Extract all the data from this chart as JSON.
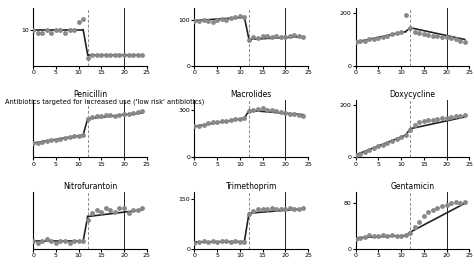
{
  "subplots": [
    {
      "title": "",
      "row": 0,
      "col": 0,
      "scatter_x": [
        0,
        1,
        2,
        3,
        4,
        5,
        6,
        7,
        8,
        9,
        10,
        11,
        12,
        13,
        14,
        15,
        16,
        17,
        18,
        19,
        20,
        21,
        22,
        23,
        24
      ],
      "scatter_y": [
        10,
        9,
        9,
        10,
        9,
        10,
        10,
        9,
        10,
        10,
        12,
        13,
        2,
        3,
        3,
        3,
        3,
        3,
        3,
        3,
        3,
        3,
        3,
        3,
        3
      ],
      "line_x": [
        0,
        11,
        12,
        24
      ],
      "line_y": [
        10,
        10,
        3,
        3
      ],
      "vline1": 12,
      "vline2": 20,
      "ylim": [
        0,
        16
      ],
      "yticks": [
        10
      ],
      "ylabel": ""
    },
    {
      "title": "",
      "row": 0,
      "col": 1,
      "scatter_x": [
        0,
        1,
        2,
        3,
        4,
        5,
        6,
        7,
        8,
        9,
        10,
        11,
        12,
        13,
        14,
        15,
        16,
        17,
        18,
        19,
        20,
        21,
        22,
        23,
        24
      ],
      "scatter_y": [
        97,
        98,
        100,
        98,
        95,
        100,
        101,
        100,
        103,
        105,
        107,
        106,
        55,
        62,
        60,
        64,
        64,
        62,
        64,
        62,
        62,
        64,
        66,
        65,
        63
      ],
      "line_x": [
        0,
        11,
        12,
        24
      ],
      "line_y": [
        98,
        105,
        57,
        63
      ],
      "vline1": 12,
      "vline2": 20,
      "ylim": [
        0,
        125
      ],
      "yticks": [
        0,
        100
      ],
      "ylabel": ""
    },
    {
      "title": "",
      "row": 0,
      "col": 2,
      "scatter_x": [
        0,
        1,
        2,
        3,
        4,
        5,
        6,
        7,
        8,
        9,
        10,
        11,
        12,
        13,
        14,
        15,
        16,
        17,
        18,
        19,
        20,
        21,
        22,
        23,
        24
      ],
      "scatter_y": [
        90,
        95,
        95,
        100,
        100,
        105,
        110,
        115,
        120,
        125,
        130,
        195,
        145,
        130,
        125,
        120,
        118,
        115,
        112,
        110,
        108,
        105,
        100,
        95,
        90
      ],
      "line_x": [
        0,
        11,
        12,
        24
      ],
      "line_y": [
        90,
        130,
        145,
        100
      ],
      "vline1": 12,
      "vline2": 20,
      "ylim": [
        0,
        220
      ],
      "yticks": [
        0,
        200
      ],
      "ylabel": ""
    },
    {
      "title": "Penicillin",
      "row": 1,
      "col": 0,
      "scatter_x": [
        0,
        1,
        2,
        3,
        4,
        5,
        6,
        7,
        8,
        9,
        10,
        11,
        12,
        13,
        14,
        15,
        16,
        17,
        18,
        19,
        20,
        21,
        22,
        23,
        24
      ],
      "scatter_y": [
        50,
        52,
        55,
        58,
        60,
        62,
        65,
        68,
        70,
        73,
        75,
        78,
        135,
        140,
        143,
        145,
        147,
        148,
        145,
        148,
        150,
        152,
        155,
        157,
        160
      ],
      "line_x": [
        0,
        11,
        12,
        24
      ],
      "line_y": [
        50,
        78,
        135,
        155
      ],
      "vline1": 12,
      "vline2": 20,
      "ylim": [
        0,
        200
      ],
      "yticks": [],
      "ylabel": ""
    },
    {
      "title": "Macrolides",
      "row": 1,
      "col": 1,
      "scatter_x": [
        0,
        1,
        2,
        3,
        4,
        5,
        6,
        7,
        8,
        9,
        10,
        11,
        12,
        13,
        14,
        15,
        16,
        17,
        18,
        19,
        20,
        21,
        22,
        23,
        24
      ],
      "scatter_y": [
        195,
        200,
        205,
        215,
        220,
        225,
        228,
        230,
        235,
        240,
        242,
        245,
        290,
        300,
        305,
        310,
        300,
        295,
        290,
        285,
        278,
        275,
        270,
        265,
        262
      ],
      "line_x": [
        0,
        11,
        12,
        24
      ],
      "line_y": [
        195,
        245,
        295,
        268
      ],
      "vline1": 12,
      "vline2": 20,
      "ylim": [
        0,
        360
      ],
      "yticks": [
        0,
        300
      ],
      "ylabel": ""
    },
    {
      "title": "Doxycycline",
      "row": 1,
      "col": 2,
      "scatter_x": [
        0,
        1,
        2,
        3,
        4,
        5,
        6,
        7,
        8,
        9,
        10,
        11,
        12,
        13,
        14,
        15,
        16,
        17,
        18,
        19,
        20,
        21,
        22,
        23,
        24
      ],
      "scatter_y": [
        10,
        15,
        20,
        28,
        35,
        42,
        48,
        55,
        62,
        70,
        78,
        85,
        105,
        125,
        135,
        140,
        142,
        145,
        148,
        150,
        153,
        155,
        158,
        160,
        162
      ],
      "line_x": [
        0,
        11,
        12,
        24
      ],
      "line_y": [
        10,
        85,
        110,
        155
      ],
      "vline1": 12,
      "vline2": 20,
      "ylim": [
        0,
        220
      ],
      "yticks": [
        0,
        200
      ],
      "ylabel": ""
    },
    {
      "title": "Nitrofurantoin",
      "row": 2,
      "col": 0,
      "scatter_x": [
        0,
        1,
        2,
        3,
        4,
        5,
        6,
        7,
        8,
        9,
        10,
        11,
        12,
        13,
        14,
        15,
        16,
        17,
        18,
        19,
        20,
        21,
        22,
        23,
        24
      ],
      "scatter_y": [
        5,
        4,
        5,
        6,
        5,
        4,
        5,
        5,
        4,
        5,
        5,
        5,
        18,
        22,
        24,
        23,
        25,
        24,
        23,
        25,
        25,
        22,
        24,
        24,
        25
      ],
      "line_x": [
        0,
        11,
        12,
        24
      ],
      "line_y": [
        5,
        5,
        20,
        24
      ],
      "vline1": 12,
      "vline2": 20,
      "ylim": [
        0,
        35
      ],
      "yticks": [],
      "ylabel": ""
    },
    {
      "title": "Trimethoprim",
      "row": 2,
      "col": 1,
      "scatter_x": [
        0,
        1,
        2,
        3,
        4,
        5,
        6,
        7,
        8,
        9,
        10,
        11,
        12,
        13,
        14,
        15,
        16,
        17,
        18,
        19,
        20,
        21,
        22,
        23,
        24
      ],
      "scatter_y": [
        20,
        22,
        24,
        23,
        25,
        22,
        24,
        25,
        23,
        24,
        23,
        22,
        105,
        112,
        118,
        120,
        119,
        122,
        120,
        118,
        120,
        122,
        120,
        118,
        122
      ],
      "line_x": [
        0,
        11,
        12,
        24
      ],
      "line_y": [
        22,
        23,
        107,
        120
      ],
      "vline1": 12,
      "vline2": 20,
      "ylim": [
        0,
        170
      ],
      "yticks": [
        0,
        150
      ],
      "ylabel": ""
    },
    {
      "title": "Gentamicin",
      "row": 2,
      "col": 2,
      "scatter_x": [
        0,
        1,
        2,
        3,
        4,
        5,
        6,
        7,
        8,
        9,
        10,
        11,
        12,
        13,
        14,
        15,
        16,
        17,
        18,
        19,
        20,
        21,
        22,
        23,
        24
      ],
      "scatter_y": [
        18,
        20,
        22,
        25,
        23,
        24,
        25,
        24,
        25,
        23,
        24,
        25,
        28,
        38,
        48,
        58,
        65,
        68,
        72,
        75,
        78,
        80,
        82,
        80,
        82
      ],
      "line_x": [
        0,
        11,
        12,
        24
      ],
      "line_y": [
        20,
        24,
        30,
        80
      ],
      "vline1": 12,
      "vline2": 20,
      "ylim": [
        0,
        100
      ],
      "yticks": [
        0,
        80
      ],
      "ylabel": ""
    }
  ],
  "section_label": "Antibiotics targeted for increased use ('low risk' antibiotics)",
  "scatter_color": "#888888",
  "line_color": "#222222",
  "vline_dashed_color": "#888888",
  "vline_solid_color": "#222222",
  "xticks": [
    0,
    5,
    10,
    15,
    20,
    25
  ],
  "xlim": [
    0,
    25
  ],
  "marker_size": 3.5,
  "line_width": 1.2
}
